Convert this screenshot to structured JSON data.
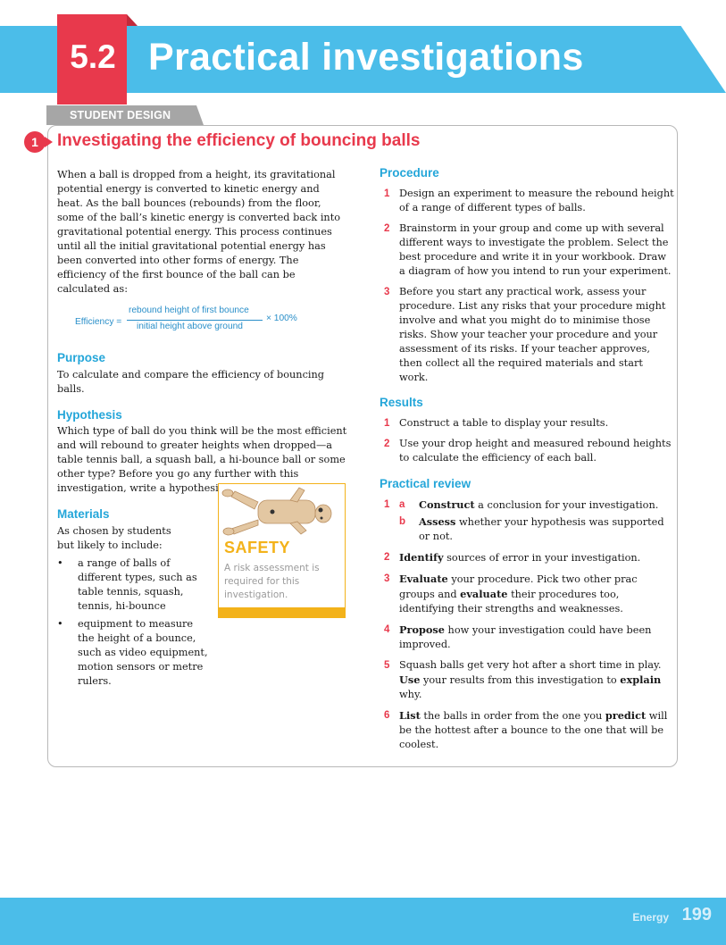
{
  "header": {
    "section_number": "5.2",
    "title": "Practical investigations"
  },
  "tag": "STUDENT DESIGN",
  "activity": {
    "number": "1",
    "title": "Investigating the efficiency of bouncing balls"
  },
  "intro": "When a ball is dropped from a height, its gravitational potential energy is converted to kinetic energy and heat. As the ball bounces (rebounds) from the floor, some of the ball’s kinetic energy is converted back into gravitational potential energy. This process continues until all the initial gravitational potential energy has been converted into other forms of energy. The efficiency of the first bounce of the ball can be calculated as:",
  "formula": {
    "lhs": "Efficiency =",
    "numerator": "rebound height of first bounce",
    "denominator": "initial height above ground",
    "rhs": "× 100%"
  },
  "purpose": {
    "heading": "Purpose",
    "text": "To calculate and compare the efficiency of bouncing balls."
  },
  "hypothesis": {
    "heading": "Hypothesis",
    "text": "Which type of ball do you think will be the most efficient and will rebound to greater heights when dropped—a table tennis ball, a squash ball, a hi-bounce ball or some other type? Before you go any further with this investigation, write a hypothesis in your workbook."
  },
  "materials": {
    "heading": "Materials",
    "intro": "As chosen by students but likely to include:",
    "items": [
      "a range of balls of different types, such as table tennis, squash, tennis, hi-bounce",
      "equipment to measure the height of a bounce, such as video equipment, motion sensors or metre rulers."
    ]
  },
  "safety": {
    "title": "SAFETY",
    "text": "A risk assessment is required for this investigation.",
    "image": "crash-test-dummy"
  },
  "procedure": {
    "heading": "Procedure",
    "steps": [
      {
        "n": "1",
        "text": "Design an experiment to measure the rebound height of a range of different types of balls."
      },
      {
        "n": "2",
        "text": "Brainstorm in your group and come up with several different ways to investigate the problem. Select the best procedure and write it in your workbook. Draw a diagram of how you intend to run your experiment."
      },
      {
        "n": "3",
        "text": "Before you start any practical work, assess your procedure. List any risks that your procedure might involve and what you might do to minimise those risks. Show your teacher your procedure and your assessment of its risks. If your teacher approves, then collect all the required materials and start work."
      }
    ]
  },
  "results": {
    "heading": "Results",
    "steps": [
      {
        "n": "1",
        "text": "Construct a table to display your results."
      },
      {
        "n": "2",
        "text": "Use your drop height and measured rebound heights to calculate the efficiency of each ball."
      }
    ]
  },
  "review": {
    "heading": "Practical review",
    "q1": {
      "n": "1",
      "a": {
        "l": "a",
        "bold": "Construct",
        "rest": " a conclusion for your investigation."
      },
      "b": {
        "l": "b",
        "bold": "Assess",
        "rest": " whether your hypothesis was supported or not."
      }
    },
    "q2": {
      "n": "2",
      "bold": "Identify",
      "rest": " sources of error in your investigation."
    },
    "q3": {
      "n": "3",
      "bold1": "Evaluate",
      "mid": " your procedure. Pick two other prac groups and ",
      "bold2": "evaluate",
      "rest": " their procedures too, identifying their strengths and weaknesses."
    },
    "q4": {
      "n": "4",
      "bold": "Propose",
      "rest": " how your investigation could have been improved."
    },
    "q5": {
      "n": "5",
      "pre": "Squash balls get very hot after a short time in play. ",
      "bold1": "Use",
      "mid": " your results from this investigation to ",
      "bold2": "explain",
      "rest": " why."
    },
    "q6": {
      "n": "6",
      "bold1": "List",
      "mid": " the balls in order from the one you ",
      "bold2": "predict",
      "rest": " will be the hottest after a bounce to the one that will be coolest."
    }
  },
  "footer": {
    "label": "Energy",
    "page": "199"
  },
  "colors": {
    "blue": "#4bbde9",
    "red": "#e8394c",
    "heading_blue": "#24a6d9",
    "safety_yellow": "#f3b21a"
  }
}
